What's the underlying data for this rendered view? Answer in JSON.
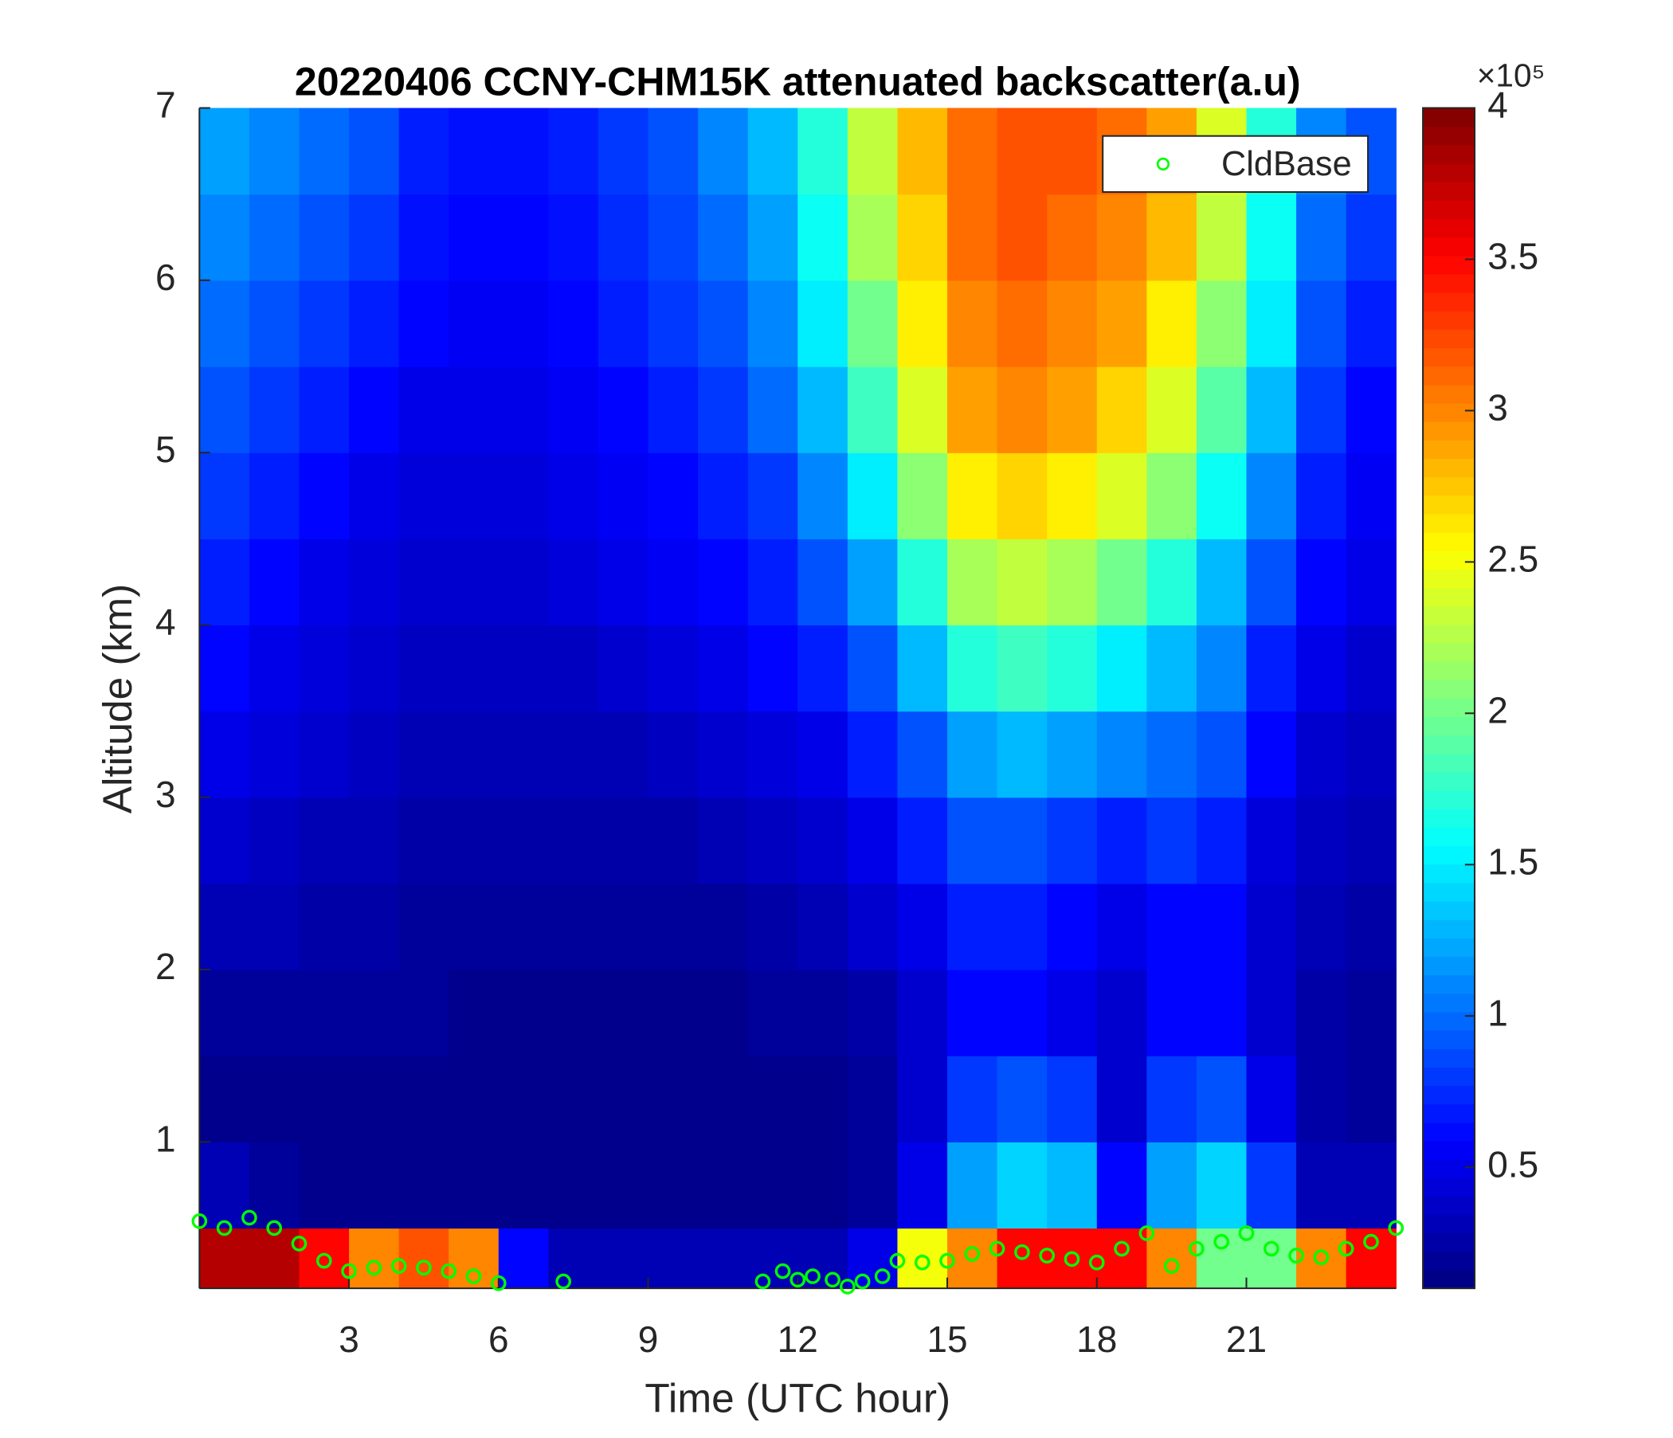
{
  "chart_data": {
    "type": "heatmap",
    "title": "20220406 CCNY-CHM15K attenuated backscatter(a.u)",
    "xlabel": "Time (UTC hour)",
    "ylabel": "Altitude (km)",
    "xlim": [
      0,
      24
    ],
    "ylim": [
      0.15,
      7
    ],
    "xticks": [
      3,
      6,
      9,
      12,
      15,
      18,
      21
    ],
    "yticks": [
      1,
      2,
      3,
      4,
      5,
      6,
      7
    ],
    "x_edges": [
      0,
      1,
      2,
      3,
      4,
      5,
      6,
      7,
      8,
      9,
      10,
      11,
      12,
      13,
      14,
      15,
      16,
      17,
      18,
      19,
      20,
      21,
      22,
      23,
      24
    ],
    "y_edges": [
      0.15,
      0.5,
      1,
      1.5,
      2,
      2.5,
      3,
      3.5,
      4,
      4.5,
      5,
      5.5,
      6,
      6.5,
      7
    ],
    "z": [
      [
        3.8,
        3.8,
        3.5,
        3.0,
        3.2,
        3.0,
        0.6,
        0.3,
        0.3,
        0.3,
        0.3,
        0.3,
        0.3,
        0.5,
        2.5,
        3.0,
        3.5,
        3.5,
        3.5,
        3.0,
        2.0,
        2.0,
        3.0,
        3.5
      ],
      [
        0.3,
        0.2,
        0.15,
        0.15,
        0.15,
        0.15,
        0.15,
        0.15,
        0.15,
        0.15,
        0.15,
        0.15,
        0.15,
        0.2,
        0.5,
        1.2,
        1.4,
        1.3,
        0.6,
        1.2,
        1.4,
        0.8,
        0.3,
        0.3
      ],
      [
        0.15,
        0.15,
        0.15,
        0.15,
        0.15,
        0.15,
        0.15,
        0.15,
        0.15,
        0.15,
        0.15,
        0.15,
        0.15,
        0.2,
        0.4,
        0.8,
        0.9,
        0.8,
        0.4,
        0.8,
        0.9,
        0.5,
        0.25,
        0.2
      ],
      [
        0.2,
        0.2,
        0.2,
        0.2,
        0.2,
        0.15,
        0.15,
        0.15,
        0.15,
        0.15,
        0.15,
        0.2,
        0.2,
        0.25,
        0.4,
        0.6,
        0.6,
        0.5,
        0.4,
        0.6,
        0.6,
        0.4,
        0.25,
        0.2
      ],
      [
        0.3,
        0.3,
        0.25,
        0.25,
        0.2,
        0.2,
        0.2,
        0.2,
        0.2,
        0.2,
        0.2,
        0.25,
        0.3,
        0.4,
        0.5,
        0.7,
        0.7,
        0.6,
        0.5,
        0.6,
        0.6,
        0.4,
        0.3,
        0.25
      ],
      [
        0.4,
        0.35,
        0.3,
        0.3,
        0.25,
        0.25,
        0.25,
        0.25,
        0.25,
        0.25,
        0.3,
        0.35,
        0.4,
        0.5,
        0.7,
        0.9,
        0.9,
        0.8,
        0.7,
        0.8,
        0.7,
        0.45,
        0.35,
        0.3
      ],
      [
        0.5,
        0.45,
        0.4,
        0.35,
        0.3,
        0.3,
        0.3,
        0.3,
        0.3,
        0.35,
        0.4,
        0.45,
        0.5,
        0.7,
        0.9,
        1.2,
        1.3,
        1.2,
        1.1,
        1.0,
        0.9,
        0.6,
        0.4,
        0.35
      ],
      [
        0.6,
        0.5,
        0.45,
        0.4,
        0.35,
        0.35,
        0.35,
        0.35,
        0.4,
        0.45,
        0.5,
        0.6,
        0.7,
        0.9,
        1.3,
        1.7,
        1.8,
        1.7,
        1.5,
        1.3,
        1.1,
        0.7,
        0.5,
        0.4
      ],
      [
        0.7,
        0.6,
        0.5,
        0.45,
        0.4,
        0.4,
        0.4,
        0.45,
        0.5,
        0.55,
        0.6,
        0.7,
        0.9,
        1.2,
        1.7,
        2.2,
        2.3,
        2.2,
        2.0,
        1.7,
        1.3,
        0.9,
        0.6,
        0.5
      ],
      [
        0.8,
        0.7,
        0.6,
        0.5,
        0.45,
        0.45,
        0.45,
        0.5,
        0.55,
        0.6,
        0.7,
        0.8,
        1.1,
        1.5,
        2.1,
        2.6,
        2.7,
        2.6,
        2.4,
        2.1,
        1.6,
        1.1,
        0.7,
        0.55
      ],
      [
        0.9,
        0.8,
        0.7,
        0.6,
        0.5,
        0.5,
        0.5,
        0.55,
        0.6,
        0.7,
        0.8,
        1.0,
        1.3,
        1.8,
        2.4,
        2.9,
        3.0,
        2.9,
        2.7,
        2.4,
        1.9,
        1.3,
        0.8,
        0.6
      ],
      [
        1.0,
        0.9,
        0.8,
        0.7,
        0.6,
        0.55,
        0.55,
        0.6,
        0.7,
        0.8,
        0.9,
        1.1,
        1.5,
        2.0,
        2.6,
        3.0,
        3.1,
        3.0,
        2.9,
        2.6,
        2.1,
        1.5,
        0.9,
        0.7
      ],
      [
        1.1,
        1.0,
        0.9,
        0.8,
        0.65,
        0.6,
        0.6,
        0.65,
        0.75,
        0.85,
        1.0,
        1.2,
        1.6,
        2.2,
        2.7,
        3.1,
        3.2,
        3.1,
        3.0,
        2.8,
        2.3,
        1.6,
        1.0,
        0.8
      ],
      [
        1.2,
        1.1,
        1.0,
        0.9,
        0.7,
        0.65,
        0.65,
        0.7,
        0.8,
        0.9,
        1.1,
        1.3,
        1.7,
        2.3,
        2.8,
        3.1,
        3.2,
        3.2,
        3.1,
        2.9,
        2.4,
        1.7,
        1.1,
        0.9
      ]
    ],
    "colorbar": {
      "colormap": "jet",
      "clim": [
        0.1,
        4
      ],
      "ticks": [
        0.5,
        1,
        1.5,
        2,
        2.5,
        3,
        3.5,
        4
      ],
      "multiplier": "×10⁵"
    },
    "series": [
      {
        "name": "CldBase",
        "color": "#00ff00",
        "marker": "circle",
        "x": [
          0.0,
          0.5,
          1.0,
          1.5,
          2.0,
          2.5,
          3.0,
          3.5,
          4.0,
          4.5,
          5.0,
          5.5,
          6.0,
          7.3,
          11.3,
          11.7,
          12.0,
          12.3,
          12.7,
          13.0,
          13.3,
          13.7,
          14.0,
          14.5,
          15.0,
          15.5,
          16.0,
          16.5,
          17.0,
          17.5,
          18.0,
          18.5,
          19.0,
          19.5,
          20.0,
          20.5,
          21.0,
          21.5,
          22.0,
          22.5,
          23.0,
          23.5,
          24.0
        ],
        "y": [
          0.54,
          0.5,
          0.56,
          0.5,
          0.41,
          0.31,
          0.25,
          0.27,
          0.28,
          0.27,
          0.25,
          0.22,
          0.18,
          0.19,
          0.19,
          0.25,
          0.2,
          0.22,
          0.2,
          0.16,
          0.19,
          0.22,
          0.31,
          0.3,
          0.31,
          0.35,
          0.38,
          0.36,
          0.34,
          0.32,
          0.3,
          0.38,
          0.47,
          0.28,
          0.38,
          0.42,
          0.47,
          0.38,
          0.34,
          0.33,
          0.38,
          0.42,
          0.5
        ]
      }
    ],
    "legend": "upper right"
  }
}
